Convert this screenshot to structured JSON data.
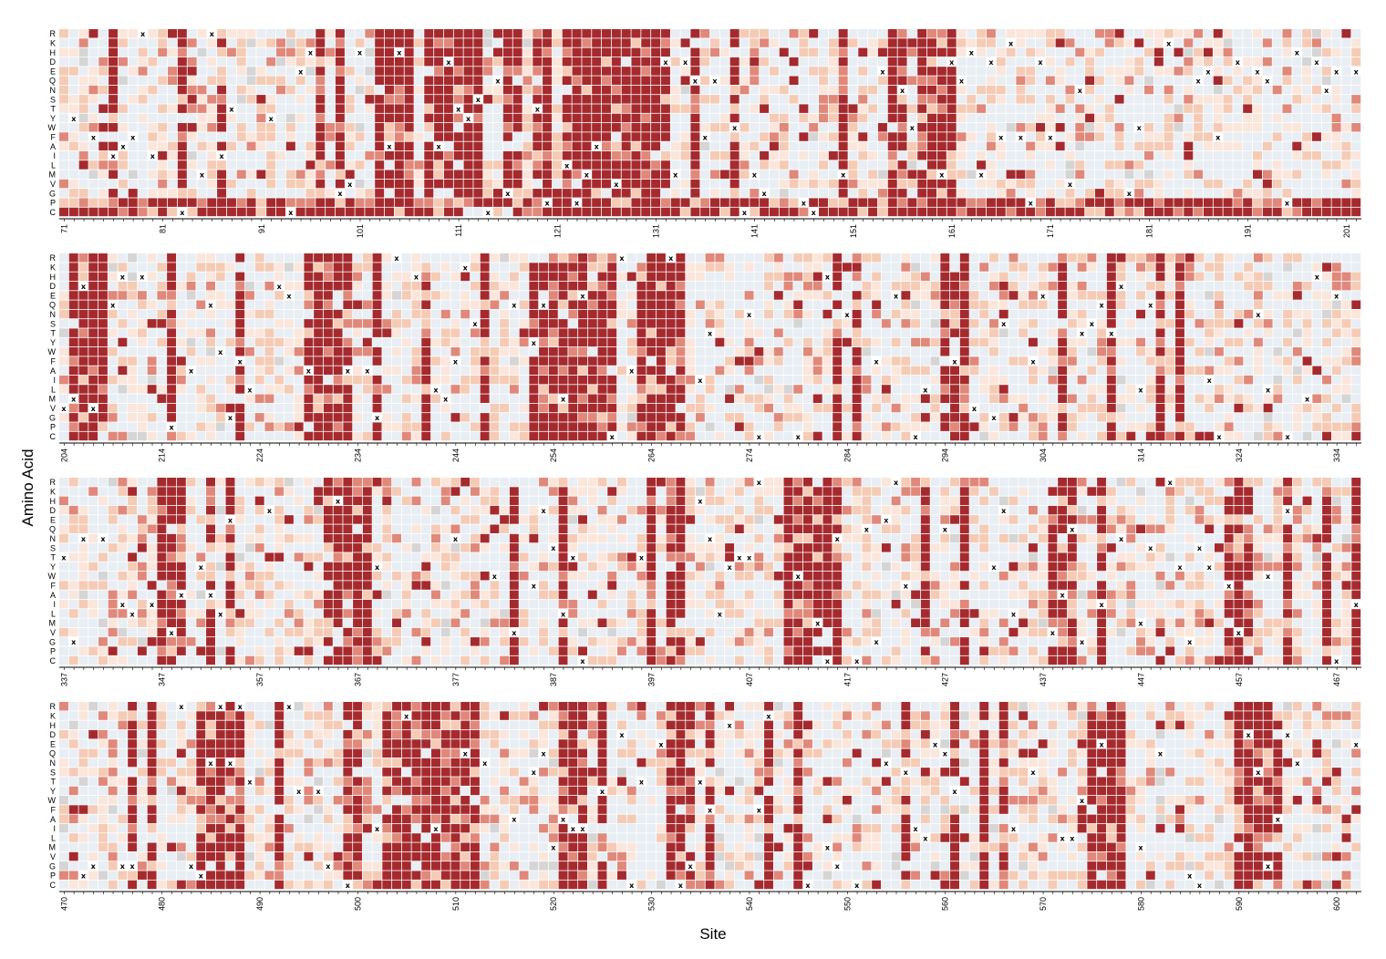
{
  "chart_data": {
    "type": "heatmap",
    "title": "",
    "xlabel": "Site",
    "ylabel": "Amino Acid",
    "amino_acids": [
      "R",
      "K",
      "H",
      "D",
      "E",
      "Q",
      "N",
      "S",
      "T",
      "Y",
      "W",
      "F",
      "A",
      "I",
      "L",
      "M",
      "V",
      "G",
      "P",
      "C"
    ],
    "colors": {
      "strong": "#a52a2e",
      "medium": "#e0887a",
      "light": "#f5cbb5",
      "faint": "#fbe6dc",
      "neutral": "#e8eef3",
      "missing": "#d5d5d5",
      "marker": "#000000"
    },
    "marker_symbol": "x",
    "panels": [
      {
        "start": 71,
        "end": 202,
        "ticks": [
          71,
          81,
          91,
          101,
          111,
          121,
          131,
          141,
          151,
          161,
          171,
          181,
          191,
          201
        ]
      },
      {
        "start": 204,
        "end": 336,
        "ticks": [
          204,
          214,
          224,
          234,
          244,
          254,
          264,
          274,
          284,
          294,
          304,
          314,
          324,
          334
        ]
      },
      {
        "start": 337,
        "end": 469,
        "ticks": [
          337,
          347,
          357,
          367,
          377,
          387,
          397,
          407,
          417,
          427,
          437,
          447,
          457,
          467
        ]
      },
      {
        "start": 470,
        "end": 602,
        "ticks": [
          470,
          480,
          490,
          500,
          510,
          520,
          530,
          540,
          550,
          560,
          570,
          580,
          590,
          600
        ]
      }
    ],
    "value_scale": "categorical intensity 0 (neutral) to 4 (strong); -1 = missing",
    "strong_columns": [
      [
        76,
        83,
        87,
        97,
        99,
        103,
        104,
        105,
        106,
        108,
        109,
        110,
        111,
        112,
        113,
        116,
        117,
        119,
        120,
        122,
        123,
        124,
        125,
        126,
        127,
        128,
        129,
        130,
        131,
        132,
        135,
        139,
        150,
        155,
        156,
        158,
        159,
        160,
        161
      ],
      [
        205,
        206,
        207,
        208,
        215,
        222,
        229,
        230,
        231,
        232,
        233,
        236,
        241,
        247,
        252,
        253,
        254,
        255,
        256,
        257,
        258,
        259,
        260,
        263,
        264,
        265,
        266,
        267,
        283,
        285,
        294,
        295,
        296,
        306,
        311,
        316,
        318
      ],
      [
        347,
        348,
        349,
        352,
        354,
        364,
        365,
        366,
        367,
        368,
        383,
        388,
        397,
        399,
        400,
        411,
        412,
        413,
        414,
        415,
        416,
        425,
        429,
        438,
        439,
        440,
        443,
        456,
        457,
        458,
        462,
        466,
        469
      ],
      [
        477,
        479,
        484,
        485,
        486,
        487,
        488,
        492,
        499,
        500,
        503,
        504,
        505,
        506,
        507,
        508,
        509,
        510,
        511,
        512,
        521,
        522,
        523,
        525,
        532,
        533,
        534,
        536,
        542,
        545,
        556,
        561,
        564,
        566,
        575,
        576,
        577,
        578,
        590,
        591,
        592,
        593,
        594
      ]
    ],
    "dense_rows": [
      "P",
      "C"
    ]
  }
}
